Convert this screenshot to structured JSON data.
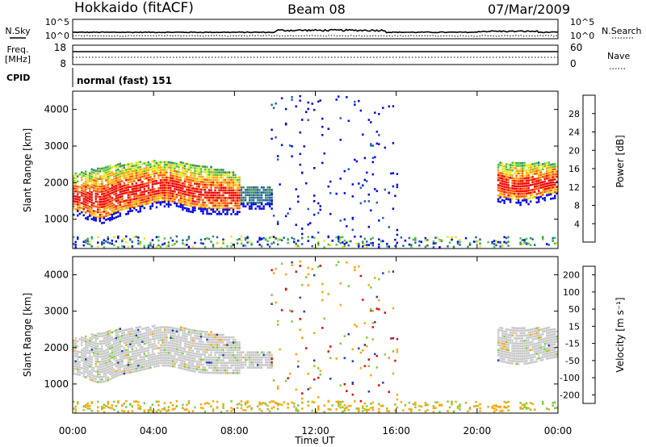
{
  "header": {
    "station": "Hokkaido (fitACF)",
    "beam": "Beam 08",
    "date": "07/Mar/2009"
  },
  "top_panels": {
    "nsky_label": "N.Sky",
    "nsky_ticks": [
      "10^5",
      "10^0"
    ],
    "nsearch_label": "N.Search",
    "nsearch_ticks": [
      "10^5",
      "10^0"
    ],
    "freq_label_line1": "Freq.",
    "freq_label_line2": "[MHz]",
    "freq_ticks": [
      "18",
      "8"
    ],
    "nave_label": "Nave",
    "nave_ticks": [
      "60",
      "0"
    ],
    "cpid_label": "CPID",
    "cpid_value": "normal (fast) 151"
  },
  "chart_data": [
    {
      "type": "heatmap",
      "name": "power",
      "ylabel": "Slant Range [km]",
      "ylim": [
        200,
        4500
      ],
      "y_ticks": [
        "4000",
        "3000",
        "2000",
        "1000"
      ],
      "colorbar_label": "Power [dB]",
      "colorbar_ticks": [
        "28",
        "24",
        "20",
        "16",
        "12",
        "8",
        "4"
      ],
      "colors": [
        "#0000ee",
        "#1f5faf",
        "#3f8f55",
        "#46c83c",
        "#e6e61e",
        "#ffa500",
        "#ff5500",
        "#ee0000"
      ],
      "echo_regions": [
        {
          "x_start": 0.0,
          "x_end": 8.2,
          "range_low": 1250,
          "range_high": 2500,
          "level": "strong"
        },
        {
          "x_start": 8.2,
          "x_end": 9.8,
          "range_low": 1400,
          "range_high": 2000,
          "level": "weak"
        },
        {
          "x_start": 21.0,
          "x_end": 24.0,
          "range_low": 1700,
          "range_high": 2600,
          "level": "strong"
        }
      ]
    },
    {
      "type": "heatmap",
      "name": "velocity",
      "ylabel": "Slant Range [km]",
      "xlabel": "Time UT",
      "ylim": [
        200,
        4500
      ],
      "y_ticks": [
        "4000",
        "3000",
        "2000",
        "1000"
      ],
      "x_ticks": [
        "00:00",
        "04:00",
        "08:00",
        "12:00",
        "16:00",
        "20:00",
        "00:00"
      ],
      "colorbar_label": "Velocity [m s⁻¹]",
      "colorbar_ticks": [
        "200",
        "100",
        "50",
        "15",
        "-15",
        "-50",
        "-100",
        "-200"
      ],
      "colors": [
        "#1f3fb0",
        "#2e8b57",
        "#7ccd3c",
        "#c8c8c8",
        "#c8c8c8",
        "#ffa500",
        "#ff7f00",
        "#ee0000"
      ]
    }
  ]
}
